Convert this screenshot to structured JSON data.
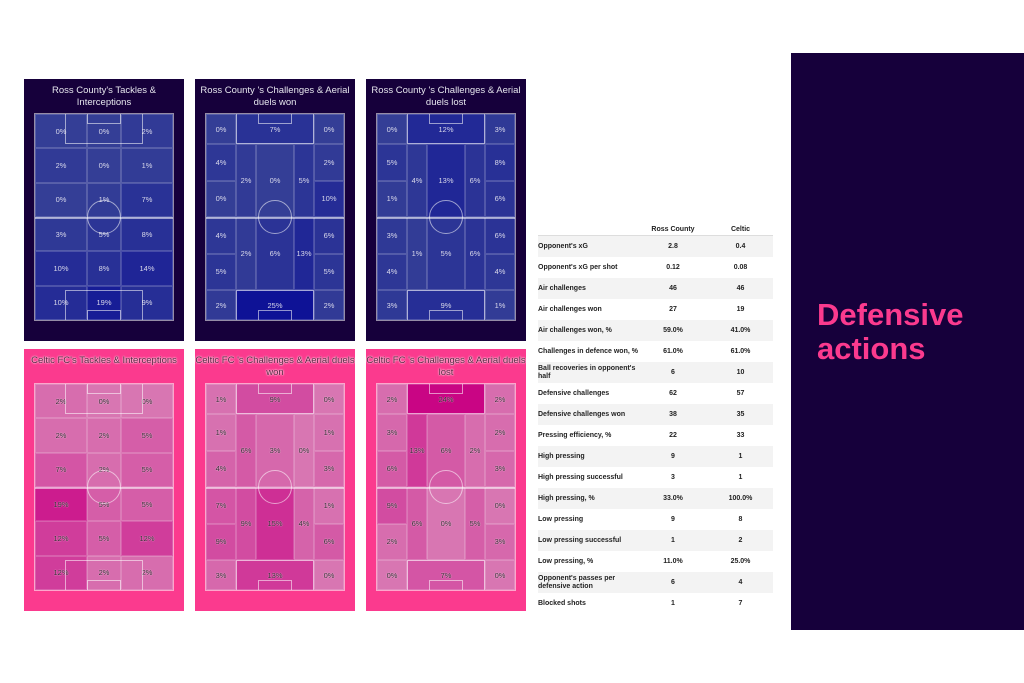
{
  "colors": {
    "ross_county_bg": "#16003b",
    "celtic_bg": "#fb3a8e",
    "accent": "#fb3a8e",
    "side_panel": "#16003b"
  },
  "side_panel": {
    "title": "Defensive actions"
  },
  "panels": [
    {
      "id": "rc_ti",
      "team": "Ross County",
      "title": "Ross County's Tackles & Interceptions",
      "layout": "grid3x6",
      "values": [
        "0%",
        "0%",
        "2%",
        "2%",
        "0%",
        "1%",
        "0%",
        "1%",
        "7%",
        "3%",
        "5%",
        "8%",
        "10%",
        "8%",
        "14%",
        "10%",
        "19%",
        "9%"
      ]
    },
    {
      "id": "rc_won",
      "team": "Ross County",
      "title": "Ross County 's Challenges & Aerial duels won",
      "layout": "zones",
      "values": {
        "top_left": "0%",
        "top_box": "7%",
        "top_right": "0%",
        "ul1": "4%",
        "ul2": "0%",
        "ur1": "2%",
        "ur2": "10%",
        "uhs_l": "2%",
        "u_center": "0%",
        "uhs_r": "5%",
        "ll1": "4%",
        "ll2": "5%",
        "lr1": "6%",
        "lr2": "5%",
        "lhs_l": "2%",
        "l_center": "6%",
        "lhs_r": "13%",
        "bot_left": "2%",
        "bot_box": "25%",
        "bot_right": "2%"
      }
    },
    {
      "id": "rc_lost",
      "team": "Ross County",
      "title": "Ross County 's Challenges & Aerial duels lost",
      "layout": "zones",
      "values": {
        "top_left": "0%",
        "top_box": "12%",
        "top_right": "3%",
        "ul1": "5%",
        "ul2": "1%",
        "ur1": "8%",
        "ur2": "6%",
        "uhs_l": "4%",
        "u_center": "13%",
        "uhs_r": "6%",
        "ll1": "3%",
        "ll2": "4%",
        "lr1": "6%",
        "lr2": "4%",
        "lhs_l": "1%",
        "l_center": "5%",
        "lhs_r": "6%",
        "bot_left": "3%",
        "bot_box": "9%",
        "bot_right": "1%"
      }
    },
    {
      "id": "ce_ti",
      "team": "Celtic FC",
      "title": "Celtic FC's Tackles & Interceptions",
      "layout": "grid3x6",
      "values": [
        "2%",
        "0%",
        "0%",
        "2%",
        "2%",
        "5%",
        "7%",
        "2%",
        "5%",
        "19%",
        "5%",
        "5%",
        "12%",
        "5%",
        "12%",
        "12%",
        "2%",
        "2%"
      ]
    },
    {
      "id": "ce_won",
      "team": "Celtic FC",
      "title": "Celtic FC 's Challenges & Aerial duels won",
      "layout": "zones",
      "values": {
        "top_left": "1%",
        "top_box": "9%",
        "top_right": "0%",
        "ul1": "1%",
        "ul2": "4%",
        "ur1": "1%",
        "ur2": "3%",
        "uhs_l": "6%",
        "u_center": "3%",
        "uhs_r": "0%",
        "ll1": "7%",
        "ll2": "9%",
        "lr1": "1%",
        "lr2": "6%",
        "lhs_l": "9%",
        "l_center": "15%",
        "lhs_r": "4%",
        "bot_left": "3%",
        "bot_box": "13%",
        "bot_right": "0%"
      }
    },
    {
      "id": "ce_lost",
      "team": "Celtic FC",
      "title": "Celtic FC 's Challenges & Aerial duels lost",
      "layout": "zones",
      "values": {
        "top_left": "2%",
        "top_box": "24%",
        "top_right": "2%",
        "ul1": "3%",
        "ul2": "6%",
        "ur1": "2%",
        "ur2": "3%",
        "uhs_l": "13%",
        "u_center": "6%",
        "uhs_r": "2%",
        "ll1": "9%",
        "ll2": "2%",
        "lr1": "0%",
        "lr2": "3%",
        "lhs_l": "6%",
        "l_center": "0%",
        "lhs_r": "5%",
        "bot_left": "0%",
        "bot_box": "7%",
        "bot_right": "0%"
      }
    }
  ],
  "stats_table": {
    "headers": [
      "",
      "Ross County",
      "Celtic"
    ],
    "rows": [
      [
        "Opponent's xG",
        "2.8",
        "0.4"
      ],
      [
        "Opponent's xG per shot",
        "0.12",
        "0.08"
      ],
      [
        "Air challenges",
        "46",
        "46"
      ],
      [
        "Air challenges won",
        "27",
        "19"
      ],
      [
        "Air challenges won, %",
        "59.0%",
        "41.0%"
      ],
      [
        "Challenges in defence won, %",
        "61.0%",
        "61.0%"
      ],
      [
        "Ball recoveries in opponent's half",
        "6",
        "10"
      ],
      [
        "Defensive challenges",
        "62",
        "57"
      ],
      [
        "Defensive challenges won",
        "38",
        "35"
      ],
      [
        "Pressing efficiency, %",
        "22",
        "33"
      ],
      [
        "High pressing",
        "9",
        "1"
      ],
      [
        "High pressing successful",
        "3",
        "1"
      ],
      [
        "High pressing, %",
        "33.0%",
        "100.0%"
      ],
      [
        "Low pressing",
        "9",
        "8"
      ],
      [
        "Low pressing successful",
        "1",
        "2"
      ],
      [
        "Low pressing, %",
        "11.0%",
        "25.0%"
      ],
      [
        "Opponent's passes per defensive action",
        "6",
        "4"
      ],
      [
        "Blocked shots",
        "1",
        "7"
      ]
    ]
  },
  "chart_data": [
    {
      "type": "heatmap",
      "title": "Ross County's Tackles & Interceptions",
      "grid": "3 cols x 6 rows (top=attacking end)",
      "rows": [
        [
          "0%",
          "0%",
          "2%"
        ],
        [
          "2%",
          "0%",
          "1%"
        ],
        [
          "0%",
          "1%",
          "7%"
        ],
        [
          "3%",
          "5%",
          "8%"
        ],
        [
          "10%",
          "8%",
          "14%"
        ],
        [
          "10%",
          "19%",
          "9%"
        ]
      ]
    },
    {
      "type": "heatmap",
      "title": "Ross County 's Challenges & Aerial duels won",
      "zones": {
        "top": [
          "0%",
          "7%",
          "0%"
        ],
        "upper": {
          "left": [
            "4%",
            "0%"
          ],
          "halfspace_left": "2%",
          "center": "0%",
          "halfspace_right": "5%",
          "right": [
            "2%",
            "10%"
          ]
        },
        "lower": {
          "left": [
            "4%",
            "5%"
          ],
          "halfspace_left": "2%",
          "center": "6%",
          "halfspace_right": "13%",
          "right": [
            "6%",
            "5%"
          ]
        },
        "bottom": [
          "2%",
          "25%",
          "2%"
        ]
      }
    },
    {
      "type": "heatmap",
      "title": "Ross County 's Challenges & Aerial duels lost",
      "zones": {
        "top": [
          "0%",
          "12%",
          "3%"
        ],
        "upper": {
          "left": [
            "5%",
            "1%"
          ],
          "halfspace_left": "4%",
          "center": "13%",
          "halfspace_right": "6%",
          "right": [
            "8%",
            "6%"
          ]
        },
        "lower": {
          "left": [
            "3%",
            "4%"
          ],
          "halfspace_left": "1%",
          "center": "5%",
          "halfspace_right": "6%",
          "right": [
            "6%",
            "4%"
          ]
        },
        "bottom": [
          "3%",
          "9%",
          "1%"
        ]
      }
    },
    {
      "type": "heatmap",
      "title": "Celtic FC's Tackles & Interceptions",
      "grid": "3 cols x 6 rows",
      "rows": [
        [
          "2%",
          "0%",
          "0%"
        ],
        [
          "2%",
          "2%",
          "5%"
        ],
        [
          "7%",
          "2%",
          "5%"
        ],
        [
          "19%",
          "5%",
          "5%"
        ],
        [
          "12%",
          "5%",
          "12%"
        ],
        [
          "12%",
          "2%",
          "2%"
        ]
      ]
    },
    {
      "type": "heatmap",
      "title": "Celtic FC 's Challenges & Aerial duels won",
      "zones": {
        "top": [
          "1%",
          "9%",
          "0%"
        ],
        "upper": {
          "left": [
            "1%",
            "4%"
          ],
          "halfspace_left": "6%",
          "center": "3%",
          "halfspace_right": "0%",
          "right": [
            "1%",
            "3%"
          ]
        },
        "lower": {
          "left": [
            "7%",
            "9%"
          ],
          "halfspace_left": "9%",
          "center": "15%",
          "halfspace_right": "4%",
          "right": [
            "1%",
            "6%"
          ]
        },
        "bottom": [
          "3%",
          "13%",
          "0%"
        ]
      }
    },
    {
      "type": "heatmap",
      "title": "Celtic FC 's Challenges & Aerial duels lost",
      "zones": {
        "top": [
          "2%",
          "24%",
          "2%"
        ],
        "upper": {
          "left": [
            "3%",
            "6%"
          ],
          "halfspace_left": "13%",
          "center": "6%",
          "halfspace_right": "2%",
          "right": [
            "2%",
            "3%"
          ]
        },
        "lower": {
          "left": [
            "9%",
            "2%"
          ],
          "halfspace_left": "6%",
          "center": "0%",
          "halfspace_right": "5%",
          "right": [
            "0%",
            "3%"
          ]
        },
        "bottom": [
          "0%",
          "7%",
          "0%"
        ]
      }
    },
    {
      "type": "table",
      "title": "Defensive actions",
      "columns": [
        "Metric",
        "Ross County",
        "Celtic"
      ]
    }
  ]
}
